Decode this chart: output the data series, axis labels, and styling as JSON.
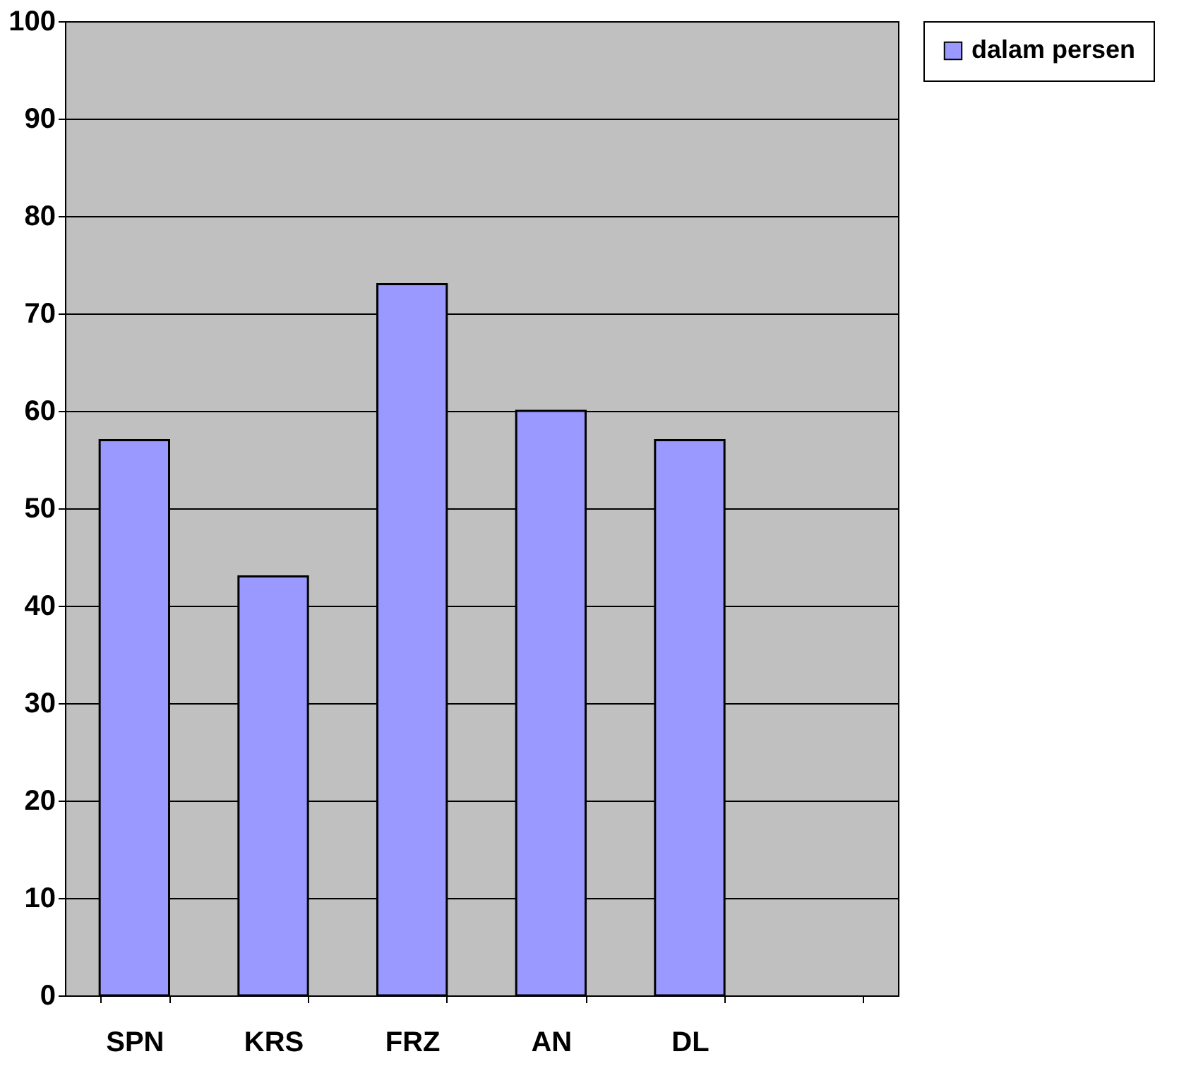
{
  "chart_data": {
    "type": "bar",
    "categories": [
      "SPN",
      "KRS",
      "FRZ",
      "AN",
      "DL",
      null
    ],
    "series": [
      {
        "name": "dalam persen",
        "color": "#9999ff",
        "values": [
          57,
          43,
          73,
          60,
          57,
          null
        ]
      }
    ],
    "ylim": [
      0,
      100
    ],
    "yticks": [
      0,
      10,
      20,
      30,
      40,
      50,
      60,
      70,
      80,
      90,
      100
    ],
    "grid": "y",
    "legend": "right"
  }
}
